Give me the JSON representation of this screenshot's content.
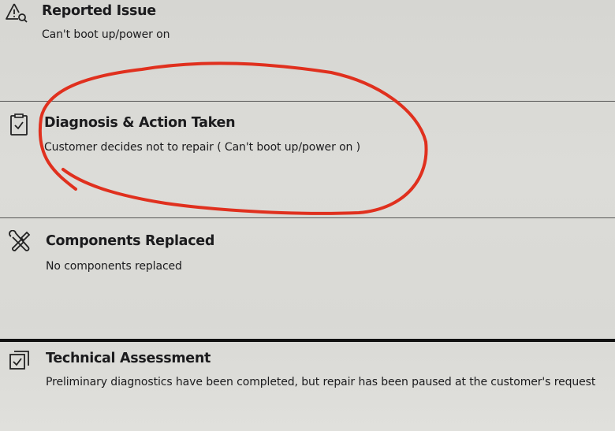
{
  "sections": [
    {
      "title": "Reported Issue",
      "body": "Can't boot up/power on",
      "icon": "warning-search-icon"
    },
    {
      "title": "Diagnosis & Action Taken",
      "body": "Customer decides not to repair ( Can't boot up/power on )",
      "icon": "clipboard-check-icon"
    },
    {
      "title": "Components Replaced",
      "body": "No components replaced",
      "icon": "tools-icon"
    },
    {
      "title": "Technical Assessment",
      "body": "Preliminary diagnostics have been completed, but repair has been paused at the customer's request",
      "icon": "stacked-checkbox-icon"
    }
  ],
  "annotation": {
    "color": "#e0301e",
    "shape": "hand-drawn circle around Diagnosis & Action Taken"
  }
}
